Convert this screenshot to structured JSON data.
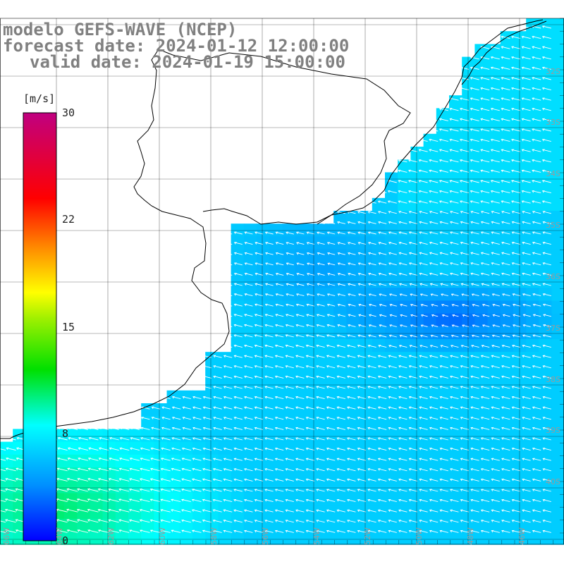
{
  "header": {
    "line1": "modelo GEFS-WAVE (NCEP)",
    "line2": "forecast date: 2024-01-12 12:00:00",
    "line3": "valid date: 2024-01-19 15:00:00"
  },
  "colorbar": {
    "unit": "[m/s]",
    "min": 0,
    "max": 30,
    "ticks": [
      "30",
      "22",
      "15",
      "8",
      "0"
    ]
  },
  "map": {
    "variable": "wind speed with direction arrows",
    "lat_labels": [
      "32S",
      "33S",
      "34S",
      "35S",
      "36S",
      "37S",
      "38S",
      "39S",
      "40S"
    ],
    "lon_labels": [
      "66W",
      "64W",
      "62W",
      "60W",
      "58W",
      "56W",
      "54W",
      "52W",
      "50W",
      "48W",
      "46W"
    ],
    "speed_range_note": "green near 8-11 m/s in southwest, cyan/blue 3-8 m/s elsewhere",
    "colors": {
      "land": "#ffffff",
      "coast": "#000000",
      "grid": "#000000"
    }
  }
}
